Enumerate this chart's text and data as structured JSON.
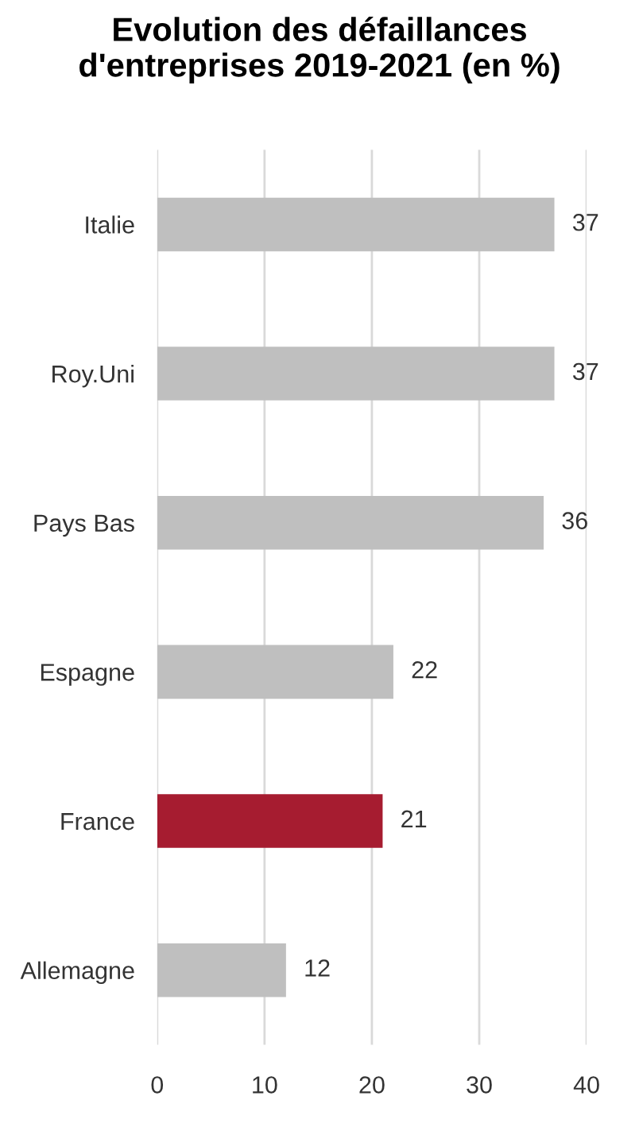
{
  "chart_data": {
    "type": "bar",
    "orientation": "horizontal",
    "title": "Evolution des défaillances\nd'entreprises 2019-2021 (en %)",
    "categories": [
      "Italie",
      "Roy.Uni",
      "Pays Bas",
      "Espagne",
      "France",
      "Allemagne"
    ],
    "values": [
      37,
      37,
      36,
      22,
      21,
      12
    ],
    "colors": [
      "#bfbfbf",
      "#bfbfbf",
      "#bfbfbf",
      "#bfbfbf",
      "#a61c30",
      "#bfbfbf"
    ],
    "xlim": [
      0,
      40
    ],
    "xticks": [
      0,
      10,
      20,
      30,
      40
    ],
    "grid": "x",
    "data_labels": true
  }
}
